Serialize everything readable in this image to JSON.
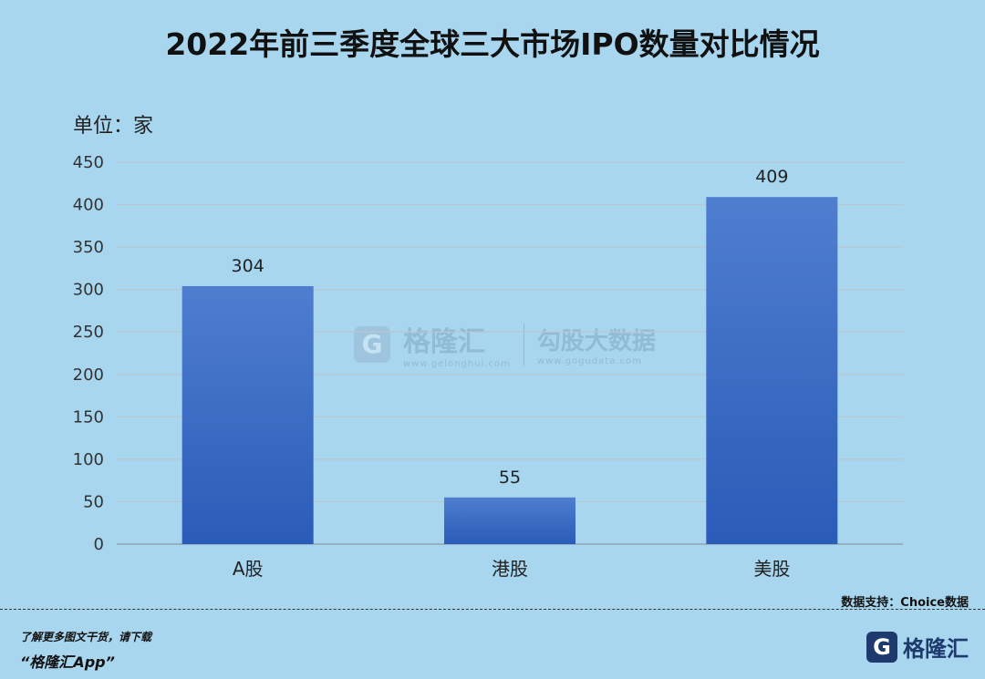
{
  "title": "2022年前三季度全球三大市场IPO数量对比情况",
  "unit_label": "单位：家",
  "source": "数据支持：Choice数据",
  "promo": {
    "line1": "了解更多图文干货，请下载",
    "line2": "“格隆汇App”"
  },
  "brand": {
    "icon": "G",
    "name": "格隆汇"
  },
  "watermark": {
    "icon": "G",
    "name": "格隆汇",
    "url1": "www.gelonghui.com",
    "sub": "勾股大数据",
    "url2": "www.gogudata.com"
  },
  "chart_data": {
    "type": "bar",
    "categories": [
      "A股",
      "港股",
      "美股"
    ],
    "values": [
      304,
      55,
      409
    ],
    "ylim": [
      0,
      450
    ],
    "yticks": [
      0,
      50,
      100,
      150,
      200,
      250,
      300,
      350,
      400,
      450
    ],
    "grid": true,
    "data_labels": true,
    "bar_color_top": "#4f7ecf",
    "bar_color_bottom": "#2a5cb8"
  }
}
